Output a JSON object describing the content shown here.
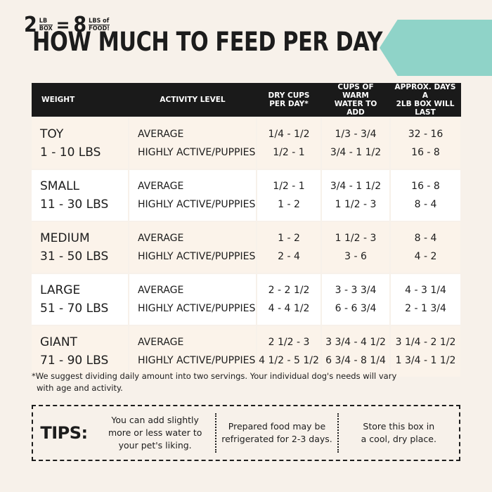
{
  "title": "HOW MUCH TO FEED PER DAY",
  "ribbon": {
    "left_number": "2",
    "left_unit_top": "LB",
    "left_unit_bottom": "BOX",
    "equals": "=",
    "right_number": "8",
    "right_unit_top": "LBS of",
    "right_unit_bottom": "FOOD!",
    "color": "#8fd3c8"
  },
  "table": {
    "headers": [
      "WEIGHT",
      "ACTIVITY LEVEL",
      "DRY CUPS\nPER DAY*",
      "CUPS OF WARM\nWATER TO ADD",
      "APPROX. DAYS A\n2LB BOX WILL LAST"
    ],
    "rows": [
      {
        "size": "TOY",
        "range": "1 - 10 LBS",
        "act1": "AVERAGE",
        "act2": "HIGHLY ACTIVE/PUPPIES",
        "dry1": "1/4 - 1/2",
        "dry2": "1/2 - 1",
        "water1": "1/3 - 3/4",
        "water2": "3/4 - 1 1/2",
        "days1": "32 - 16",
        "days2": "16 - 8"
      },
      {
        "size": "SMALL",
        "range": "11 - 30 LBS",
        "act1": "AVERAGE",
        "act2": "HIGHLY ACTIVE/PUPPIES",
        "dry1": "1/2 - 1",
        "dry2": "1 - 2",
        "water1": "3/4 - 1 1/2",
        "water2": "1 1/2 - 3",
        "days1": "16 - 8",
        "days2": "8 - 4"
      },
      {
        "size": "MEDIUM",
        "range": "31 - 50 LBS",
        "act1": "AVERAGE",
        "act2": "HIGHLY ACTIVE/PUPPIES",
        "dry1": "1 - 2",
        "dry2": "2 - 4",
        "water1": "1 1/2 - 3",
        "water2": "3 - 6",
        "days1": "8 - 4",
        "days2": "4 - 2"
      },
      {
        "size": "LARGE",
        "range": "51 - 70 LBS",
        "act1": "AVERAGE",
        "act2": "HIGHLY ACTIVE/PUPPIES",
        "dry1": "2 - 2 1/2",
        "dry2": "4 - 4 1/2",
        "water1": "3 - 3 3/4",
        "water2": "6 - 6 3/4",
        "days1": "4 - 3 1/4",
        "days2": "2 - 1 3/4"
      },
      {
        "size": "GIANT",
        "range": "71 - 90 LBS",
        "act1": "AVERAGE",
        "act2": "HIGHLY ACTIVE/PUPPIES",
        "dry1": "2 1/2 - 3",
        "dry2": "4 1/2 - 5 1/2",
        "water1": "3 3/4 - 4 1/2",
        "water2": "6 3/4 - 8 1/4",
        "days1": "3 1/4 - 2 1/2",
        "days2": "1 3/4 - 1 1/2"
      }
    ]
  },
  "footnote": {
    "line1": "*We suggest dividing daily amount into two servings. Your individual dog's needs will vary",
    "line2": "with age and activity."
  },
  "tips": {
    "label": "TIPS:",
    "items": [
      "You can add slightly\nmore or less water to\nyour pet's liking.",
      "Prepared food may be\nrefrigerated for 2-3 days.",
      "Store this box in\na cool, dry place."
    ]
  }
}
